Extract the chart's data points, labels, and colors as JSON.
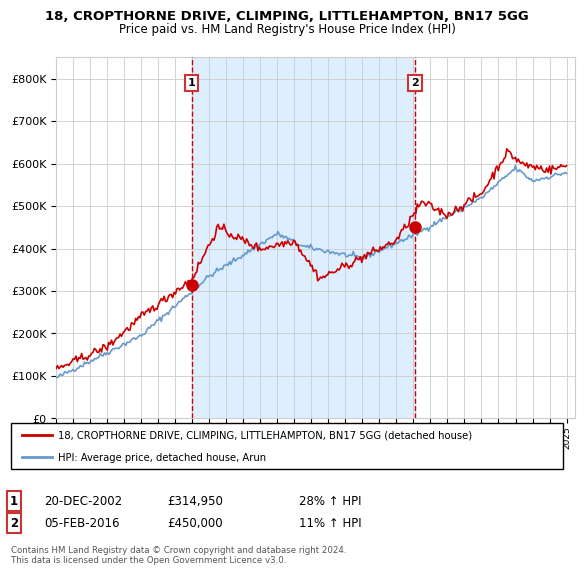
{
  "title": "18, CROPTHORNE DRIVE, CLIMPING, LITTLEHAMPTON, BN17 5GG",
  "subtitle": "Price paid vs. HM Land Registry's House Price Index (HPI)",
  "legend_line1": "18, CROPTHORNE DRIVE, CLIMPING, LITTLEHAMPTON, BN17 5GG (detached house)",
  "legend_line2": "HPI: Average price, detached house, Arun",
  "marker1_date": "20-DEC-2002",
  "marker1_price": 314950,
  "marker1_label": "28% ↑ HPI",
  "marker2_date": "05-FEB-2016",
  "marker2_price": 450000,
  "marker2_label": "11% ↑ HPI",
  "footnote": "Contains HM Land Registry data © Crown copyright and database right 2024.\nThis data is licensed under the Open Government Licence v3.0.",
  "xmin": 1995.0,
  "xmax": 2025.5,
  "ymin": 0,
  "ymax": 850000,
  "red_line_color": "#cc0000",
  "blue_line_color": "#6699cc",
  "bg_shaded_color": "#ddeeff",
  "marker1_x": 2002.97,
  "marker2_x": 2016.09,
  "background_color": "#ffffff",
  "grid_color": "#cccccc"
}
